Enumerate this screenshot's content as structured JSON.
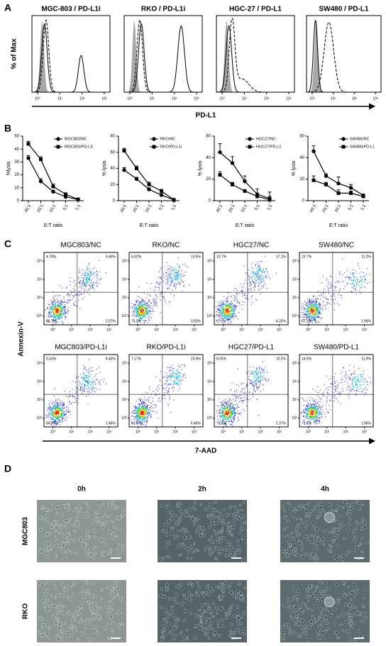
{
  "panel_a": {
    "label": "A",
    "y_label": "% of Max",
    "x_label": "PD-L1",
    "xticks": [
      {
        "value": 0,
        "label": "10⁰"
      },
      {
        "value": 1,
        "label": "10¹"
      },
      {
        "value": 2,
        "label": "10²"
      },
      {
        "value": 3,
        "label": "10³"
      }
    ],
    "plots": [
      {
        "title": "MGC-803 / PD-L1i"
      },
      {
        "title": "RKO / PD-L1i"
      },
      {
        "title": "HGC-27 / PD-L1"
      },
      {
        "title": "SW480 / PD-L1"
      }
    ]
  },
  "panel_b": {
    "label": "B",
    "charts": [
      {
        "type": "line",
        "y_label": "%lysis",
        "x_label": "E:T ratio",
        "categories": [
          "40:1",
          "20:1",
          "10:1",
          "5:1",
          "1:1"
        ],
        "ylim": [
          0,
          50
        ],
        "yticks": [
          0,
          10,
          20,
          30,
          40,
          50
        ],
        "series": [
          {
            "name": "MGC803/NC",
            "marker": "circle",
            "color": "#000000",
            "values": [
              33,
              15,
              7,
              3,
              1
            ],
            "errors": [
              2,
              2,
              1,
              1,
              1
            ]
          },
          {
            "name": "MGC803/PD-L1i",
            "marker": "square",
            "color": "#000000",
            "values": [
              44,
              32,
              11,
              5,
              1
            ],
            "errors": [
              2,
              2,
              2,
              1,
              1
            ]
          }
        ]
      },
      {
        "type": "line",
        "y_label": "% lysis",
        "x_label": "E:T ratio",
        "categories": [
          "40:1",
          "20:1",
          "10:1",
          "5:1",
          "1:1"
        ],
        "ylim": [
          0,
          80
        ],
        "yticks": [
          0,
          20,
          40,
          60,
          80
        ],
        "series": [
          {
            "name": "RKO/NC",
            "marker": "circle",
            "color": "#000000",
            "values": [
              38,
              27,
              14,
              7,
              1
            ],
            "errors": [
              3,
              2,
              2,
              2,
              1
            ]
          },
          {
            "name": "RKO/PD-L1i",
            "marker": "square",
            "color": "#000000",
            "values": [
              62,
              40,
              20,
              12,
              1
            ],
            "errors": [
              3,
              3,
              3,
              2,
              1
            ]
          }
        ]
      },
      {
        "type": "line",
        "y_label": "% lysis",
        "x_label": "E:T ratio",
        "categories": [
          "40:1",
          "20:1",
          "10:1",
          "5:1",
          "1:1"
        ],
        "ylim": [
          0,
          60
        ],
        "yticks": [
          0,
          20,
          40,
          60
        ],
        "series": [
          {
            "name": "HGC27/NC",
            "marker": "circle",
            "color": "#000000",
            "values": [
              45,
              35,
              18,
              6,
              2
            ],
            "errors": [
              8,
              6,
              5,
              5,
              6
            ]
          },
          {
            "name": "HGC27/PD-L1",
            "marker": "square",
            "color": "#000000",
            "values": [
              24,
              15,
              9,
              4,
              1
            ],
            "errors": [
              3,
              2,
              1,
              2,
              3
            ]
          }
        ]
      },
      {
        "type": "line",
        "y_label": "% lysis",
        "x_label": "E:T ratio",
        "categories": [
          "40:1",
          "20:1",
          "10:1",
          "5:1",
          "1:1"
        ],
        "ylim": [
          0,
          60
        ],
        "yticks": [
          0,
          20,
          40,
          60
        ],
        "series": [
          {
            "name": "SW480/NC",
            "marker": "circle",
            "color": "#000000",
            "values": [
              46,
              23,
              16,
              12,
              5
            ],
            "errors": [
              5,
              2,
              6,
              3,
              1
            ]
          },
          {
            "name": "SW480/PD-L1",
            "marker": "square",
            "color": "#000000",
            "values": [
              19,
              15,
              7,
              7,
              4
            ],
            "errors": [
              4,
              2,
              3,
              2,
              1
            ]
          }
        ]
      }
    ]
  },
  "panel_c": {
    "label": "C",
    "y_label": "Annexin-V",
    "x_label": "7-AAD",
    "ticks": [
      {
        "value": 0,
        "label": "10⁰"
      },
      {
        "value": 1,
        "label": "10¹"
      },
      {
        "value": 2,
        "label": "10²"
      },
      {
        "value": 3,
        "label": "10³"
      }
    ],
    "plots": [
      {
        "title": "MGC803/NC",
        "quadrants": [
          "4.78%",
          "6.49%",
          "86.7%",
          "2.07%"
        ]
      },
      {
        "title": "RKO/NC",
        "quadrants": [
          "6.92%",
          "13.5%",
          "75.9%",
          "3.63%"
        ]
      },
      {
        "title": "HGC27/NC",
        "quadrants": [
          "10.7%",
          "17.1%",
          "67.9%",
          "4.32%"
        ]
      },
      {
        "title": "SW480/NC",
        "quadrants": [
          "19.7%",
          "11.2%",
          "67.2%",
          "1.96%"
        ]
      },
      {
        "title": "MGC803/PD-L1i",
        "quadrants": [
          "5.33%",
          "8.42%",
          "84.8%",
          "1.46%"
        ]
      },
      {
        "title": "RKO/PD-L1i",
        "quadrants": [
          "7.17%",
          "23.0%",
          "63.3%",
          "6.46%"
        ]
      },
      {
        "title": "HGC27/PD-L1",
        "quadrants": [
          "8.05%",
          "10.2%",
          "79.4%",
          "2.37%"
        ]
      },
      {
        "title": "SW480/PD-L1",
        "quadrants": [
          "14.5%",
          "11.9%",
          "71.7%",
          "1.86%"
        ]
      }
    ]
  },
  "panel_d": {
    "label": "D",
    "columns": [
      "0h",
      "2h",
      "4h"
    ],
    "rows": [
      "MGC803",
      "RKO"
    ]
  }
}
